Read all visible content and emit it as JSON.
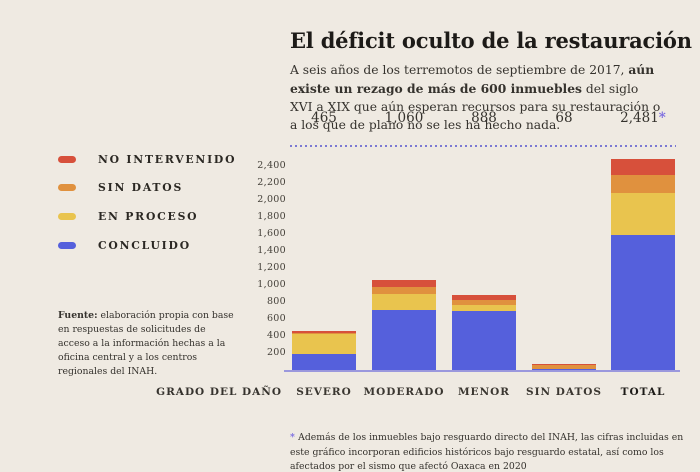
{
  "title": "El déficit oculto de la restauración",
  "subtitle": {
    "pre": "A seis años de los terremotos de septiembre de 2017, ",
    "bold": "aún existe un rezago de más de 600 inmuebles",
    "post": " del siglo XVI a XIX que aún esperan recursos para su restauración o a los que de plano no se les ha hecho nada."
  },
  "legend": {
    "items": [
      {
        "label": "NO INTERVENIDO",
        "color": "#d7503b"
      },
      {
        "label": "SIN DATOS",
        "color": "#e0913e"
      },
      {
        "label": "EN PROCESO",
        "color": "#e9c44e"
      },
      {
        "label": "CONCLUIDO",
        "color": "#5560dc"
      }
    ]
  },
  "source": {
    "label": "Fuente:",
    "text": " elaboración propia con base en respuestas de solicitudes de acceso a la información hechas a la oficina central y a los centros regionales del INAH."
  },
  "footnote": {
    "asterisk": "* ",
    "text": "Además de los inmuebles bajo resguardo directo del INAH, las cifras incluidas en este gráfico incorporan edificios históricos bajo resguardo estatal, así como los afectados por el sismo que afectó Oaxaca en 2020"
  },
  "colors": {
    "background": "#efeae2",
    "title_text": "#1d1b18",
    "body_text": "#35322d",
    "muted_text": "#45413a",
    "accent_purple": "#7a6be0",
    "dotted_line": "#7b79d3",
    "axis_baseline": "#9b98dd",
    "concluido_blue": "#5560dc",
    "en_proceso_yellow": "#e9c44e",
    "sin_datos_orange": "#e0913e",
    "no_intervenido_red": "#d7503b"
  },
  "chart_data": {
    "type": "bar",
    "stacked": true,
    "title": "El déficit oculto de la restauración",
    "xlabel": "GRADO DEL DAÑO",
    "ylabel": "",
    "grid": false,
    "legend_position": "left",
    "categories": [
      "SEVERO",
      "MODERADO",
      "MENOR",
      "SIN DATOS",
      "TOTAL"
    ],
    "emphasized_category": "TOTAL",
    "column_totals": [
      {
        "label": "465"
      },
      {
        "label": "1,060"
      },
      {
        "label": "888"
      },
      {
        "label": "68"
      },
      {
        "label": "2,481",
        "asterisk": "*"
      }
    ],
    "series": [
      {
        "name": "CONCLUIDO",
        "color": "#5560dc",
        "values": [
          185,
          705,
          690,
          10,
          1590
        ]
      },
      {
        "name": "EN PROCESO",
        "color": "#e9c44e",
        "values": [
          235,
          190,
          70,
          0,
          495
        ]
      },
      {
        "name": "SIN DATOS",
        "color": "#e0913e",
        "values": [
          15,
          80,
          65,
          48,
          208
        ]
      },
      {
        "name": "NO INTERVENIDO",
        "color": "#d7503b",
        "values": [
          30,
          85,
          63,
          10,
          188
        ]
      }
    ],
    "ylim": [
      0,
      2481
    ],
    "yticks": [
      {
        "value": 200,
        "label": "200"
      },
      {
        "value": 400,
        "label": "400"
      },
      {
        "value": 600,
        "label": "600"
      },
      {
        "value": 800,
        "label": "800"
      },
      {
        "value": 1000,
        "label": "1,000"
      },
      {
        "value": 1200,
        "label": "1,200"
      },
      {
        "value": 1400,
        "label": "1,400"
      },
      {
        "value": 1600,
        "label": "1,600"
      },
      {
        "value": 1800,
        "label": "1,800"
      },
      {
        "value": 2000,
        "label": "2,000"
      },
      {
        "value": 2200,
        "label": "2,200"
      },
      {
        "value": 2400,
        "label": "2,400"
      }
    ]
  }
}
